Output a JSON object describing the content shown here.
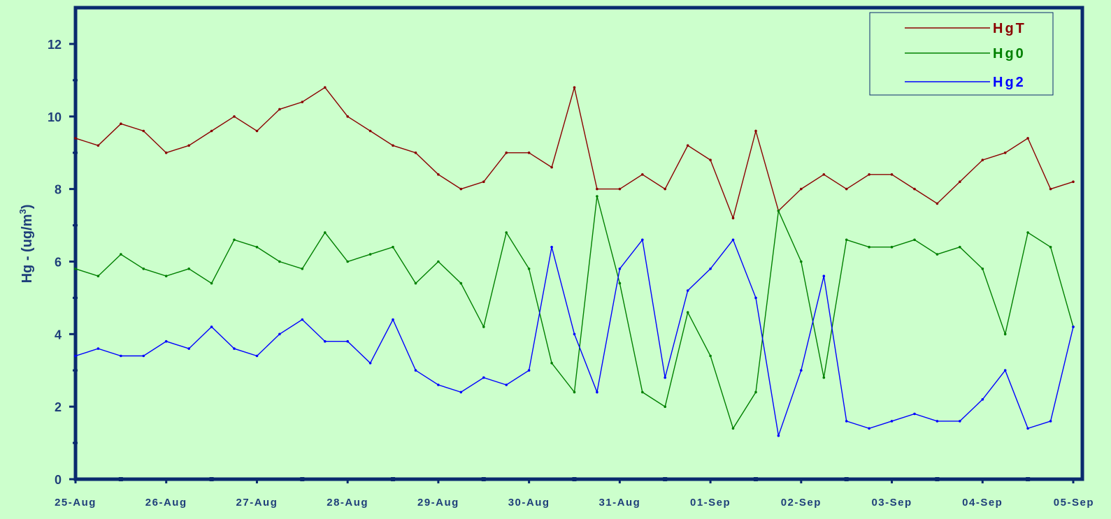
{
  "chart_data": {
    "type": "line",
    "ylabel": "Hg  - (ug/m",
    "ylabel_sup": "3",
    "ylabel_close": ")",
    "ylim": [
      0,
      13
    ],
    "yticks": [
      0,
      2,
      4,
      6,
      8,
      10,
      12
    ],
    "xlim": [
      "2023-08-25",
      "2023-09-05"
    ],
    "x_tick_labels": [
      "25-Aug",
      "26-Aug",
      "27-Aug",
      "28-Aug",
      "29-Aug",
      "30-Aug",
      "31-Aug",
      "01-Sep",
      "02-Sep",
      "03-Sep",
      "04-Sep",
      "05-Sep"
    ],
    "grid": false,
    "legend_position": "top-right",
    "series": [
      {
        "name": "HgT",
        "legend_label": "HgT",
        "color": "#8b0000",
        "points": [
          [
            "2023-08-25 00:00",
            9.4
          ],
          [
            "2023-08-25 06:00",
            9.2
          ],
          [
            "2023-08-25 12:00",
            9.8
          ],
          [
            "2023-08-25 18:00",
            9.6
          ],
          [
            "2023-08-26 00:00",
            9.0
          ],
          [
            "2023-08-26 06:00",
            9.2
          ],
          [
            "2023-08-26 12:00",
            9.6
          ],
          [
            "2023-08-26 18:00",
            10.0
          ],
          [
            "2023-08-27 00:00",
            9.6
          ],
          [
            "2023-08-27 06:00",
            10.2
          ],
          [
            "2023-08-27 12:00",
            10.4
          ],
          [
            "2023-08-27 18:00",
            10.8
          ],
          [
            "2023-08-28 00:00",
            10.0
          ],
          [
            "2023-08-28 06:00",
            9.6
          ],
          [
            "2023-08-28 12:00",
            9.2
          ],
          [
            "2023-08-28 18:00",
            9.0
          ],
          [
            "2023-08-29 00:00",
            8.4
          ],
          [
            "2023-08-29 06:00",
            8.0
          ],
          [
            "2023-08-29 12:00",
            8.2
          ],
          [
            "2023-08-29 18:00",
            9.0
          ],
          [
            "2023-08-30 00:00",
            9.0
          ],
          [
            "2023-08-30 06:00",
            8.6
          ],
          [
            "2023-08-30 12:00",
            10.8
          ],
          [
            "2023-08-30 18:00",
            8.0
          ],
          [
            "2023-08-31 00:00",
            8.0
          ],
          [
            "2023-08-31 06:00",
            8.4
          ],
          [
            "2023-08-31 12:00",
            8.0
          ],
          [
            "2023-08-31 18:00",
            9.2
          ],
          [
            "2023-09-01 00:00",
            8.8
          ],
          [
            "2023-09-01 06:00",
            7.2
          ],
          [
            "2023-09-01 12:00",
            9.6
          ],
          [
            "2023-09-01 18:00",
            7.4
          ],
          [
            "2023-09-02 00:00",
            8.0
          ],
          [
            "2023-09-02 06:00",
            8.4
          ],
          [
            "2023-09-02 12:00",
            8.0
          ],
          [
            "2023-09-02 18:00",
            8.4
          ],
          [
            "2023-09-03 00:00",
            8.4
          ],
          [
            "2023-09-03 06:00",
            8.0
          ],
          [
            "2023-09-03 12:00",
            7.6
          ],
          [
            "2023-09-03 18:00",
            8.2
          ],
          [
            "2023-09-04 00:00",
            8.8
          ],
          [
            "2023-09-04 06:00",
            9.0
          ],
          [
            "2023-09-04 12:00",
            9.4
          ],
          [
            "2023-09-04 18:00",
            8.0
          ],
          [
            "2023-09-05 00:00",
            8.2
          ]
        ]
      },
      {
        "name": "Hg0",
        "legend_label": "Hg0",
        "color": "#008000",
        "points": [
          [
            "2023-08-25 00:00",
            5.8
          ],
          [
            "2023-08-25 06:00",
            5.6
          ],
          [
            "2023-08-25 12:00",
            6.2
          ],
          [
            "2023-08-25 18:00",
            5.8
          ],
          [
            "2023-08-26 00:00",
            5.6
          ],
          [
            "2023-08-26 06:00",
            5.8
          ],
          [
            "2023-08-26 12:00",
            5.4
          ],
          [
            "2023-08-26 18:00",
            6.6
          ],
          [
            "2023-08-27 00:00",
            6.4
          ],
          [
            "2023-08-27 06:00",
            6.0
          ],
          [
            "2023-08-27 12:00",
            5.8
          ],
          [
            "2023-08-27 18:00",
            6.8
          ],
          [
            "2023-08-28 00:00",
            6.0
          ],
          [
            "2023-08-28 06:00",
            6.2
          ],
          [
            "2023-08-28 12:00",
            6.4
          ],
          [
            "2023-08-28 18:00",
            5.4
          ],
          [
            "2023-08-29 00:00",
            6.0
          ],
          [
            "2023-08-29 06:00",
            5.4
          ],
          [
            "2023-08-29 12:00",
            4.2
          ],
          [
            "2023-08-29 18:00",
            6.8
          ],
          [
            "2023-08-30 00:00",
            5.8
          ],
          [
            "2023-08-30 06:00",
            3.2
          ],
          [
            "2023-08-30 12:00",
            2.4
          ],
          [
            "2023-08-30 18:00",
            7.8
          ],
          [
            "2023-08-31 00:00",
            5.4
          ],
          [
            "2023-08-31 06:00",
            2.4
          ],
          [
            "2023-08-31 12:00",
            2.0
          ],
          [
            "2023-08-31 18:00",
            4.6
          ],
          [
            "2023-09-01 00:00",
            3.4
          ],
          [
            "2023-09-01 06:00",
            1.4
          ],
          [
            "2023-09-01 12:00",
            2.4
          ],
          [
            "2023-09-01 18:00",
            7.4
          ],
          [
            "2023-09-02 00:00",
            6.0
          ],
          [
            "2023-09-02 06:00",
            2.8
          ],
          [
            "2023-09-02 12:00",
            6.6
          ],
          [
            "2023-09-02 18:00",
            6.4
          ],
          [
            "2023-09-03 00:00",
            6.4
          ],
          [
            "2023-09-03 06:00",
            6.6
          ],
          [
            "2023-09-03 12:00",
            6.2
          ],
          [
            "2023-09-03 18:00",
            6.4
          ],
          [
            "2023-09-04 00:00",
            5.8
          ],
          [
            "2023-09-04 06:00",
            4.0
          ],
          [
            "2023-09-04 12:00",
            6.8
          ],
          [
            "2023-09-04 18:00",
            6.4
          ],
          [
            "2023-09-05 00:00",
            4.2
          ]
        ]
      },
      {
        "name": "Hg2",
        "legend_label": "Hg2",
        "color": "#0000ff",
        "points": [
          [
            "2023-08-25 00:00",
            3.4
          ],
          [
            "2023-08-25 06:00",
            3.6
          ],
          [
            "2023-08-25 12:00",
            3.4
          ],
          [
            "2023-08-25 18:00",
            3.4
          ],
          [
            "2023-08-26 00:00",
            3.8
          ],
          [
            "2023-08-26 06:00",
            3.6
          ],
          [
            "2023-08-26 12:00",
            4.2
          ],
          [
            "2023-08-26 18:00",
            3.6
          ],
          [
            "2023-08-27 00:00",
            3.4
          ],
          [
            "2023-08-27 06:00",
            4.0
          ],
          [
            "2023-08-27 12:00",
            4.4
          ],
          [
            "2023-08-27 18:00",
            3.8
          ],
          [
            "2023-08-28 00:00",
            3.8
          ],
          [
            "2023-08-28 06:00",
            3.2
          ],
          [
            "2023-08-28 12:00",
            4.4
          ],
          [
            "2023-08-28 18:00",
            3.0
          ],
          [
            "2023-08-29 00:00",
            2.6
          ],
          [
            "2023-08-29 06:00",
            2.4
          ],
          [
            "2023-08-29 12:00",
            2.8
          ],
          [
            "2023-08-29 18:00",
            2.6
          ],
          [
            "2023-08-30 00:00",
            3.0
          ],
          [
            "2023-08-30 06:00",
            6.4
          ],
          [
            "2023-08-30 12:00",
            4.0
          ],
          [
            "2023-08-30 18:00",
            2.4
          ],
          [
            "2023-08-31 00:00",
            5.8
          ],
          [
            "2023-08-31 06:00",
            6.6
          ],
          [
            "2023-08-31 12:00",
            2.8
          ],
          [
            "2023-08-31 18:00",
            5.2
          ],
          [
            "2023-09-01 00:00",
            5.8
          ],
          [
            "2023-09-01 06:00",
            6.6
          ],
          [
            "2023-09-01 12:00",
            5.0
          ],
          [
            "2023-09-01 18:00",
            1.2
          ],
          [
            "2023-09-02 00:00",
            3.0
          ],
          [
            "2023-09-02 06:00",
            5.6
          ],
          [
            "2023-09-02 12:00",
            1.6
          ],
          [
            "2023-09-02 18:00",
            1.4
          ],
          [
            "2023-09-03 00:00",
            1.6
          ],
          [
            "2023-09-03 06:00",
            1.8
          ],
          [
            "2023-09-03 12:00",
            1.6
          ],
          [
            "2023-09-03 18:00",
            1.6
          ],
          [
            "2023-09-04 00:00",
            2.2
          ],
          [
            "2023-09-04 06:00",
            3.0
          ],
          [
            "2023-09-04 12:00",
            1.4
          ],
          [
            "2023-09-04 18:00",
            1.6
          ],
          [
            "2023-09-05 00:00",
            4.2
          ]
        ]
      }
    ]
  }
}
